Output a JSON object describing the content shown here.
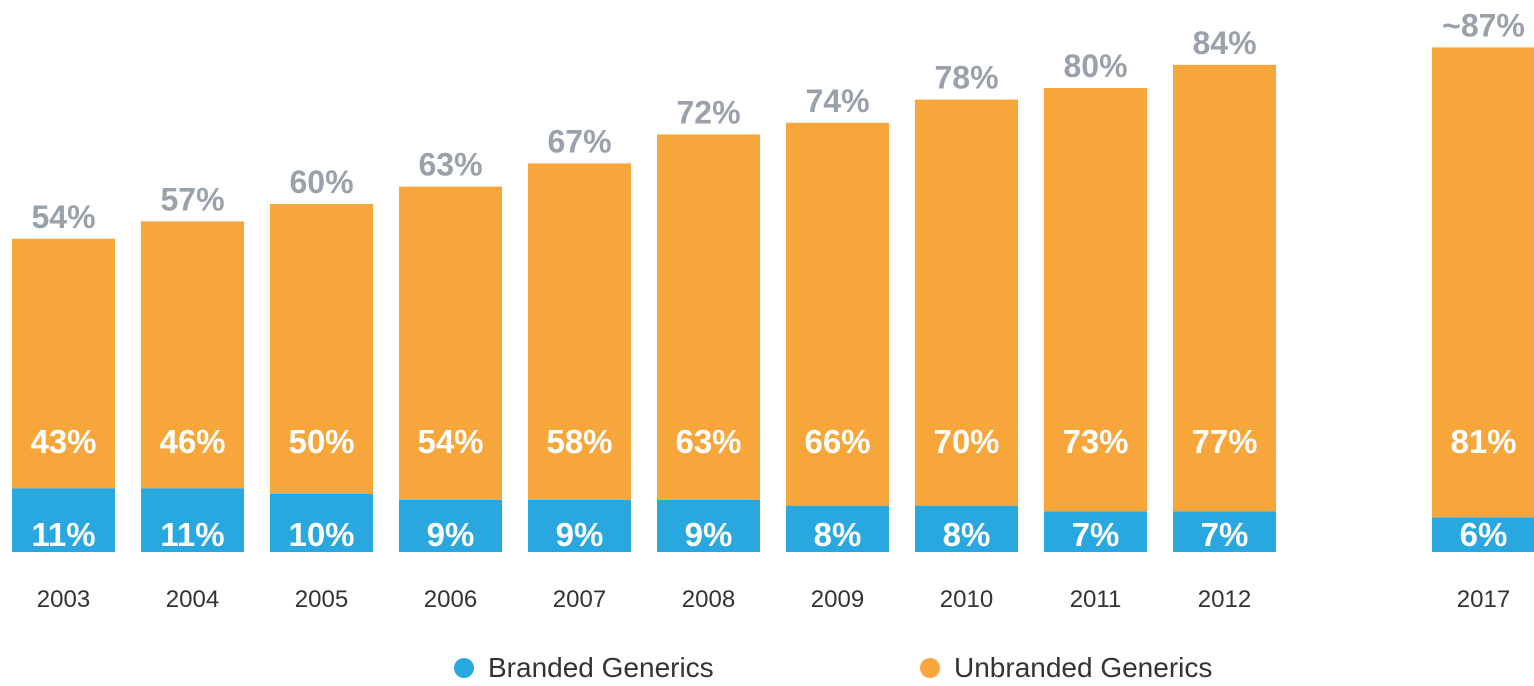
{
  "chart_data": {
    "type": "bar",
    "stacked": true,
    "categories": [
      "2003",
      "2004",
      "2005",
      "2006",
      "2007",
      "2008",
      "2009",
      "2010",
      "2011",
      "2012",
      "2017"
    ],
    "series": [
      {
        "name": "Branded Generics",
        "values": [
          11,
          11,
          10,
          9,
          9,
          9,
          8,
          8,
          7,
          7,
          6
        ],
        "labels": [
          "11%",
          "11%",
          "10%",
          "9%",
          "9%",
          "9%",
          "8%",
          "8%",
          "7%",
          "7%",
          "6%"
        ],
        "color": "#29a8e0"
      },
      {
        "name": "Unbranded Generics",
        "values": [
          43,
          46,
          50,
          54,
          58,
          63,
          66,
          70,
          73,
          77,
          81
        ],
        "labels": [
          "43%",
          "46%",
          "50%",
          "54%",
          "58%",
          "63%",
          "66%",
          "70%",
          "73%",
          "77%",
          "81%"
        ],
        "color": "#f7a63b"
      }
    ],
    "totals": [
      54,
      57,
      60,
      63,
      67,
      72,
      74,
      78,
      80,
      84,
      87
    ],
    "total_labels": [
      "54%",
      "57%",
      "60%",
      "63%",
      "67%",
      "72%",
      "74%",
      "78%",
      "80%",
      "84%",
      "~87%"
    ],
    "ylim": [
      0,
      100
    ],
    "grid": false,
    "legend_position": "bottom-center",
    "total_label_color": "#9aa1ab"
  },
  "legend": {
    "branded_label": "Branded Generics",
    "unbranded_label": "Unbranded Generics"
  }
}
